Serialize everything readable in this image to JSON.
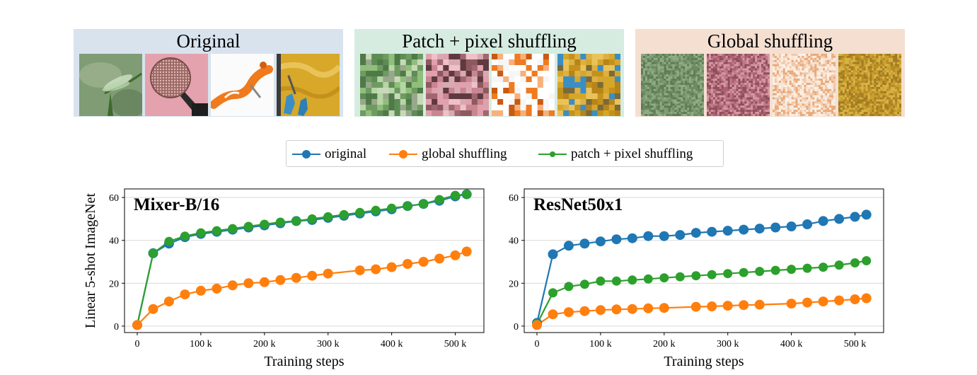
{
  "panels": [
    {
      "title": "Original",
      "background": "#d8e3ee",
      "thumb_labels": [
        "lacewing insect",
        "microphone",
        "corkscrew",
        "painting wall"
      ]
    },
    {
      "title": "Patch + pixel shuffling",
      "background": "#d6ece0"
    },
    {
      "title": "Global shuffling",
      "background": "#f4dfd1"
    }
  ],
  "legend": [
    {
      "label": "original",
      "color": "#1f77b4"
    },
    {
      "label": "global shuffling",
      "color": "#ff7f0e"
    },
    {
      "label": "patch + pixel shuffling",
      "color": "#2ca02c"
    }
  ],
  "chart_data": [
    {
      "type": "line",
      "title": "Mixer-B/16",
      "xlabel": "Training steps",
      "ylabel": "Linear 5-shot ImageNet",
      "xlim": [
        -20,
        545
      ],
      "ylim": [
        -3,
        64
      ],
      "xticks": [
        0,
        100,
        200,
        300,
        400,
        500
      ],
      "xtick_labels": [
        "0",
        "100 k",
        "200 k",
        "300 k",
        "400 k",
        "500 k"
      ],
      "yticks": [
        0,
        20,
        40,
        60
      ],
      "grid": "horizontal",
      "series": [
        {
          "name": "original",
          "color": "#1f77b4",
          "x": [
            0,
            25,
            50,
            75,
            100,
            125,
            150,
            175,
            200,
            225,
            250,
            275,
            300,
            325,
            350,
            375,
            400,
            425,
            450,
            475,
            500,
            518
          ],
          "y": [
            0.5,
            34,
            38.5,
            41.5,
            43,
            44,
            45,
            46,
            47,
            48,
            49,
            49.5,
            50.5,
            51.5,
            52.5,
            53.5,
            54.5,
            56,
            57,
            58.5,
            60.5,
            61.5
          ]
        },
        {
          "name": "patch + pixel shuffling",
          "color": "#2ca02c",
          "x": [
            0,
            25,
            50,
            75,
            100,
            125,
            150,
            175,
            200,
            225,
            250,
            275,
            300,
            325,
            350,
            375,
            400,
            425,
            450,
            475,
            500,
            518
          ],
          "y": [
            0.5,
            34,
            39.5,
            42,
            43.5,
            44.5,
            45.5,
            46.5,
            47.5,
            48.5,
            49,
            50,
            51,
            52,
            53,
            54,
            55,
            56,
            57,
            59,
            61,
            61.5
          ]
        },
        {
          "name": "global shuffling",
          "color": "#ff7f0e",
          "x": [
            0,
            25,
            50,
            75,
            100,
            125,
            150,
            175,
            200,
            225,
            250,
            275,
            300,
            350,
            375,
            400,
            425,
            450,
            475,
            500,
            518
          ],
          "y": [
            0.5,
            8,
            11.5,
            14.8,
            16.5,
            17.5,
            19,
            20,
            20.5,
            21.5,
            22.5,
            23.5,
            24.5,
            26,
            26.5,
            27.5,
            29,
            30,
            31.5,
            33,
            34.8
          ]
        }
      ]
    },
    {
      "type": "line",
      "title": "ResNet50x1",
      "xlabel": "Training steps",
      "ylabel": "",
      "xlim": [
        -20,
        545
      ],
      "ylim": [
        -3,
        64
      ],
      "xticks": [
        0,
        100,
        200,
        300,
        400,
        500
      ],
      "xtick_labels": [
        "0",
        "100 k",
        "200 k",
        "300 k",
        "400 k",
        "500 k"
      ],
      "yticks": [
        0,
        20,
        40,
        60
      ],
      "grid": "horizontal",
      "series": [
        {
          "name": "original",
          "color": "#1f77b4",
          "x": [
            0,
            25,
            50,
            75,
            100,
            125,
            150,
            175,
            200,
            225,
            250,
            275,
            300,
            325,
            350,
            375,
            400,
            425,
            450,
            475,
            500,
            518
          ],
          "y": [
            1.5,
            33.5,
            37.5,
            38.5,
            39.5,
            40.5,
            41,
            42,
            42,
            42.5,
            43.5,
            44,
            44.5,
            45,
            45.5,
            46,
            46.5,
            47.5,
            49,
            50,
            51,
            52
          ]
        },
        {
          "name": "patch + pixel shuffling",
          "color": "#2ca02c",
          "x": [
            0,
            25,
            50,
            75,
            100,
            125,
            150,
            175,
            200,
            225,
            250,
            275,
            300,
            325,
            350,
            375,
            400,
            425,
            450,
            475,
            500,
            518
          ],
          "y": [
            1,
            15.5,
            18.5,
            19.5,
            21,
            21,
            21.5,
            22,
            22.5,
            23,
            23.5,
            24,
            24.5,
            25,
            25.5,
            26,
            26.5,
            27,
            27.5,
            28.5,
            29.5,
            30.5
          ]
        },
        {
          "name": "global shuffling",
          "color": "#ff7f0e",
          "x": [
            0,
            25,
            50,
            75,
            100,
            125,
            150,
            175,
            200,
            250,
            275,
            300,
            325,
            350,
            400,
            425,
            450,
            475,
            500,
            518
          ],
          "y": [
            0.5,
            5.5,
            6.5,
            7,
            7.5,
            7.8,
            8,
            8.3,
            8.5,
            9,
            9.2,
            9.5,
            9.8,
            10,
            10.5,
            11,
            11.5,
            12,
            12.5,
            13
          ]
        }
      ]
    }
  ]
}
